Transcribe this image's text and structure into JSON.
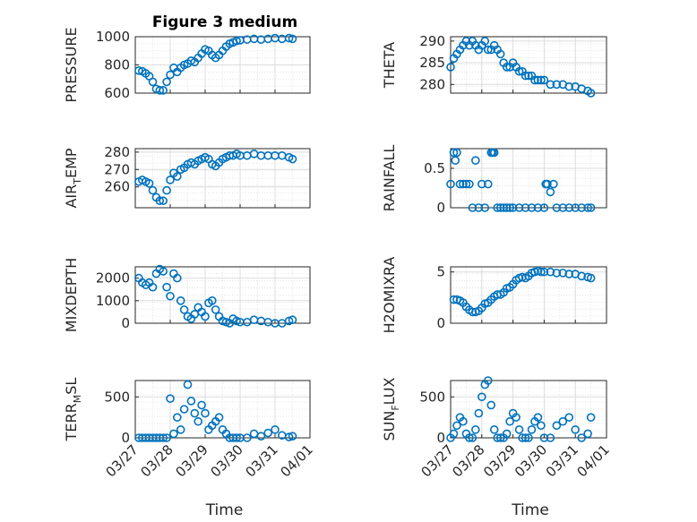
{
  "title": "Figure 3 medium",
  "colors": {
    "marker": "#0072BD",
    "grid": "#dcdcdc",
    "axis": "#262626"
  },
  "chart_data": [
    {
      "type": "scatter",
      "ylabel": "PRESSURE",
      "ylim": [
        600,
        1000
      ],
      "yticks": [
        600,
        800,
        1000
      ],
      "xlim": [
        0,
        5
      ],
      "grid": true,
      "x": [
        0.1,
        0.2,
        0.3,
        0.4,
        0.5,
        0.6,
        0.7,
        0.8,
        0.9,
        1.0,
        1.1,
        1.2,
        1.3,
        1.4,
        1.5,
        1.6,
        1.7,
        1.8,
        1.9,
        2.0,
        2.1,
        2.2,
        2.3,
        2.4,
        2.5,
        2.6,
        2.7,
        2.8,
        2.9,
        3.0,
        3.2,
        3.4,
        3.6,
        3.8,
        4.0,
        4.2,
        4.4,
        4.5
      ],
      "y": [
        760,
        755,
        740,
        720,
        680,
        630,
        620,
        620,
        680,
        730,
        780,
        750,
        780,
        800,
        810,
        830,
        820,
        850,
        880,
        910,
        900,
        870,
        850,
        870,
        900,
        930,
        950,
        960,
        970,
        975,
        980,
        985,
        980,
        985,
        990,
        985,
        990,
        985
      ]
    },
    {
      "type": "scatter",
      "ylabel": "THETA",
      "ylim": [
        278,
        291
      ],
      "yticks": [
        280,
        285,
        290
      ],
      "xlim": [
        0,
        5
      ],
      "grid": true,
      "x": [
        0.0,
        0.1,
        0.2,
        0.3,
        0.4,
        0.5,
        0.6,
        0.7,
        0.8,
        0.9,
        1.0,
        1.1,
        1.2,
        1.3,
        1.4,
        1.5,
        1.6,
        1.7,
        1.8,
        1.9,
        2.0,
        2.1,
        2.2,
        2.3,
        2.4,
        2.5,
        2.6,
        2.7,
        2.8,
        2.9,
        3.0,
        3.2,
        3.4,
        3.6,
        3.8,
        4.0,
        4.2,
        4.4,
        4.5
      ],
      "y": [
        284,
        286,
        287,
        288,
        289,
        290,
        289,
        290,
        289,
        288,
        289,
        290,
        288,
        288,
        289,
        288,
        287,
        285,
        284,
        284,
        285,
        284,
        283,
        283,
        282,
        282,
        282,
        281,
        281,
        281,
        281,
        280,
        280,
        280,
        279.5,
        279.5,
        279,
        278.5,
        278
      ]
    },
    {
      "type": "scatter",
      "ylabel": "AIR_TEMP",
      "ylim": [
        248,
        282
      ],
      "yticks": [
        260,
        270,
        280
      ],
      "xlim": [
        0,
        5
      ],
      "grid": true,
      "x": [
        0.1,
        0.2,
        0.3,
        0.4,
        0.5,
        0.6,
        0.7,
        0.8,
        0.9,
        1.0,
        1.1,
        1.2,
        1.3,
        1.4,
        1.5,
        1.6,
        1.7,
        1.8,
        1.9,
        2.0,
        2.1,
        2.2,
        2.3,
        2.4,
        2.5,
        2.6,
        2.7,
        2.8,
        2.9,
        3.0,
        3.2,
        3.4,
        3.6,
        3.8,
        4.0,
        4.2,
        4.4,
        4.5
      ],
      "y": [
        263,
        264,
        263,
        262,
        258,
        254,
        252,
        252,
        258,
        264,
        268,
        266,
        270,
        271,
        273,
        274,
        273,
        275,
        276,
        277,
        276,
        273,
        272,
        274,
        276,
        277,
        278,
        278,
        279,
        278,
        278,
        279,
        278,
        278,
        278,
        278,
        277,
        276
      ]
    },
    {
      "type": "scatter",
      "ylabel": "RAINFALL",
      "ylim": [
        0,
        0.75
      ],
      "yticks": [
        0,
        0.5
      ],
      "xlim": [
        0,
        5
      ],
      "grid": true,
      "x": [
        0.0,
        0.1,
        0.15,
        0.2,
        0.3,
        0.4,
        0.5,
        0.6,
        0.7,
        0.8,
        0.9,
        1.0,
        1.1,
        1.2,
        1.3,
        1.35,
        1.4,
        1.5,
        1.6,
        1.7,
        1.8,
        1.9,
        2.0,
        2.2,
        2.4,
        2.6,
        2.8,
        3.0,
        3.05,
        3.1,
        3.2,
        3.3,
        3.4,
        3.6,
        3.8,
        4.0,
        4.2,
        4.4,
        4.5
      ],
      "y": [
        0.3,
        0.7,
        0.6,
        0.7,
        0.3,
        0.3,
        0.3,
        0.3,
        0.0,
        0.6,
        0.0,
        0.3,
        0.0,
        0.3,
        0.7,
        0.7,
        0.7,
        0.0,
        0.0,
        0.0,
        0.0,
        0.0,
        0.0,
        0.0,
        0.0,
        0.0,
        0.0,
        0.0,
        0.3,
        0.3,
        0.2,
        0.3,
        0.0,
        0.0,
        0.0,
        0.0,
        0.0,
        0.0,
        0.0
      ]
    },
    {
      "type": "scatter",
      "ylabel": "MIXDEPTH",
      "ylim": [
        0,
        2500
      ],
      "yticks": [
        0,
        1000,
        2000
      ],
      "xlim": [
        0,
        5
      ],
      "grid": true,
      "x": [
        0.1,
        0.2,
        0.3,
        0.4,
        0.5,
        0.6,
        0.7,
        0.8,
        0.9,
        1.0,
        1.1,
        1.2,
        1.3,
        1.4,
        1.5,
        1.6,
        1.7,
        1.8,
        1.9,
        2.0,
        2.1,
        2.2,
        2.3,
        2.4,
        2.5,
        2.6,
        2.7,
        2.8,
        2.9,
        3.0,
        3.2,
        3.4,
        3.6,
        3.8,
        4.0,
        4.2,
        4.4,
        4.5
      ],
      "y": [
        2000,
        1800,
        1700,
        1800,
        1600,
        2200,
        2400,
        2300,
        1600,
        1200,
        2200,
        2000,
        1000,
        600,
        300,
        200,
        400,
        700,
        500,
        300,
        900,
        1000,
        600,
        300,
        100,
        50,
        0,
        200,
        100,
        50,
        50,
        150,
        100,
        50,
        0,
        0,
        100,
        150
      ]
    },
    {
      "type": "scatter",
      "ylabel": "H2OMIXRA",
      "ylim": [
        0,
        5.5
      ],
      "yticks": [
        0,
        5
      ],
      "xlim": [
        0,
        5
      ],
      "grid": true,
      "x": [
        0.1,
        0.2,
        0.3,
        0.4,
        0.5,
        0.6,
        0.7,
        0.8,
        0.9,
        1.0,
        1.1,
        1.2,
        1.3,
        1.4,
        1.5,
        1.6,
        1.7,
        1.8,
        1.9,
        2.0,
        2.1,
        2.2,
        2.3,
        2.4,
        2.5,
        2.6,
        2.7,
        2.8,
        2.9,
        3.0,
        3.2,
        3.4,
        3.6,
        3.8,
        4.0,
        4.2,
        4.4,
        4.5
      ],
      "y": [
        2.3,
        2.3,
        2.2,
        2.0,
        1.6,
        1.3,
        1.1,
        1.1,
        1.2,
        1.5,
        1.9,
        2.0,
        2.3,
        2.6,
        2.8,
        2.8,
        3.0,
        3.4,
        3.5,
        3.8,
        4.2,
        4.4,
        4.5,
        4.4,
        4.6,
        4.9,
        5.0,
        5.1,
        5.0,
        5.0,
        5.0,
        4.9,
        4.9,
        4.8,
        4.8,
        4.6,
        4.5,
        4.4
      ]
    },
    {
      "type": "scatter",
      "ylabel": "TERR_MSL",
      "ylim": [
        0,
        700
      ],
      "yticks": [
        0,
        500
      ],
      "xlim": [
        0,
        5
      ],
      "grid": true,
      "x": [
        0.1,
        0.2,
        0.3,
        0.4,
        0.5,
        0.6,
        0.7,
        0.8,
        0.9,
        1.0,
        1.1,
        1.2,
        1.3,
        1.4,
        1.5,
        1.6,
        1.7,
        1.8,
        1.9,
        2.0,
        2.1,
        2.2,
        2.3,
        2.4,
        2.5,
        2.6,
        2.7,
        2.8,
        2.9,
        3.0,
        3.2,
        3.4,
        3.6,
        3.8,
        4.0,
        4.2,
        4.4,
        4.5
      ],
      "y": [
        0,
        0,
        0,
        0,
        0,
        0,
        0,
        0,
        0,
        480,
        50,
        250,
        100,
        350,
        650,
        450,
        300,
        200,
        400,
        300,
        100,
        150,
        200,
        250,
        100,
        50,
        0,
        0,
        0,
        0,
        0,
        50,
        20,
        60,
        100,
        30,
        10,
        20
      ]
    },
    {
      "type": "scatter",
      "ylabel": "SUN_FLUX",
      "ylim": [
        0,
        700
      ],
      "yticks": [
        0,
        500
      ],
      "xlim": [
        0,
        5
      ],
      "grid": true,
      "x": [
        0.0,
        0.1,
        0.2,
        0.3,
        0.4,
        0.5,
        0.6,
        0.7,
        0.8,
        0.9,
        1.0,
        1.1,
        1.2,
        1.3,
        1.4,
        1.5,
        1.6,
        1.7,
        1.8,
        1.9,
        2.0,
        2.1,
        2.2,
        2.3,
        2.4,
        2.5,
        2.6,
        2.7,
        2.8,
        2.9,
        3.0,
        3.2,
        3.4,
        3.6,
        3.8,
        4.0,
        4.2,
        4.4,
        4.5
      ],
      "y": [
        0,
        50,
        150,
        250,
        200,
        50,
        0,
        0,
        100,
        300,
        500,
        650,
        700,
        400,
        100,
        0,
        0,
        0,
        50,
        200,
        300,
        250,
        100,
        0,
        0,
        0,
        100,
        200,
        250,
        150,
        0,
        0,
        150,
        200,
        250,
        100,
        0,
        50,
        250
      ]
    }
  ],
  "xaxis": {
    "ticklabels": [
      "03/27",
      "03/28",
      "03/29",
      "03/30",
      "03/31",
      "04/01"
    ],
    "label": "Time"
  }
}
